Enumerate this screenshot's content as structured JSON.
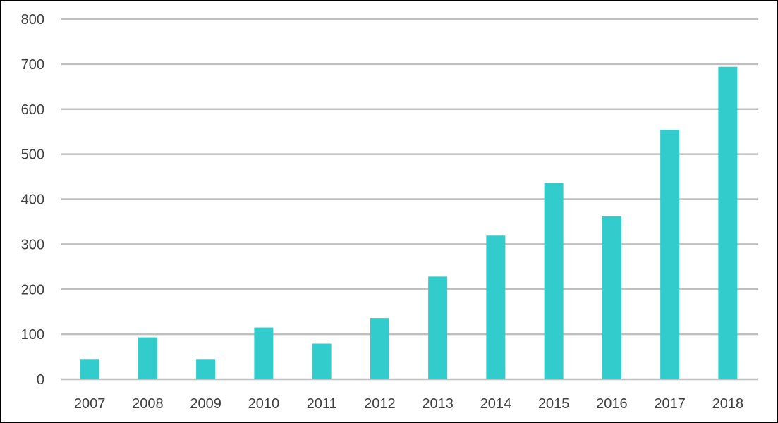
{
  "chart_data": {
    "type": "bar",
    "categories": [
      "2007",
      "2008",
      "2009",
      "2010",
      "2011",
      "2012",
      "2013",
      "2014",
      "2015",
      "2016",
      "2017",
      "2018"
    ],
    "values": [
      45,
      93,
      45,
      115,
      79,
      136,
      228,
      319,
      436,
      362,
      554,
      694
    ],
    "title": "",
    "xlabel": "",
    "ylabel": "",
    "ylim": [
      0,
      800
    ],
    "yticks": [
      "0",
      "100",
      "200",
      "300",
      "400",
      "500",
      "600",
      "700",
      "800"
    ],
    "grid": true,
    "legend": "none",
    "bar_color": "#33CCCC",
    "grid_color": "#BFBFBF",
    "text_color": "#404040"
  }
}
